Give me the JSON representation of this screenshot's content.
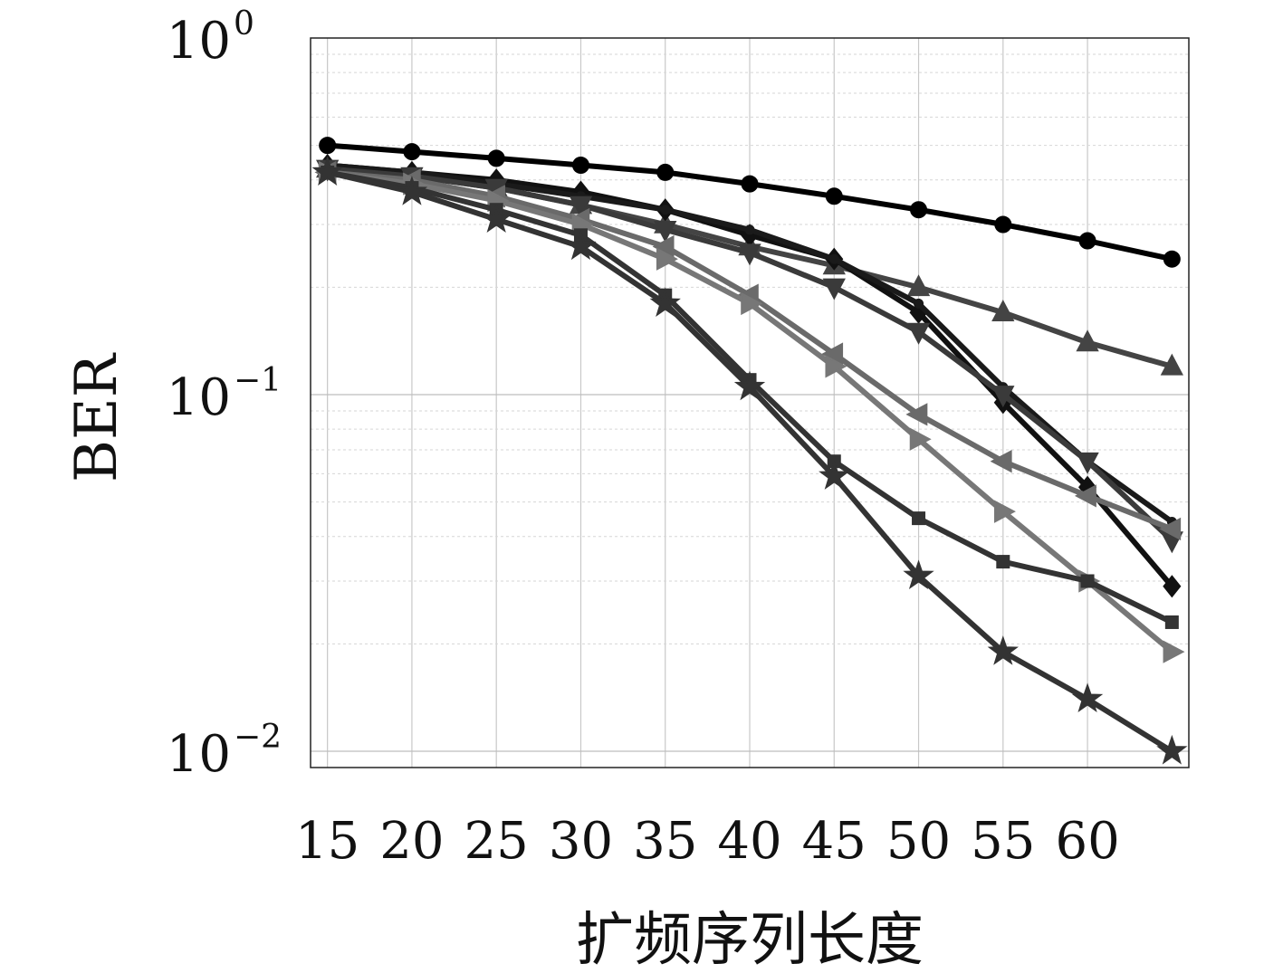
{
  "chart_data": {
    "type": "line",
    "title": "",
    "xlabel": "扩频序列长度",
    "ylabel": "BER",
    "x": [
      15,
      20,
      25,
      30,
      35,
      40,
      45,
      50,
      55,
      60,
      65
    ],
    "xticks": [
      "15",
      "20",
      "25",
      "30",
      "35",
      "40",
      "45",
      "50",
      "55",
      "60"
    ],
    "xlim": [
      14,
      66
    ],
    "yscale": "log",
    "ylim": [
      0.009,
      1
    ],
    "yticks": [
      {
        "value": 1,
        "base": "10",
        "exp": "0"
      },
      {
        "value": 0.1,
        "base": "10",
        "exp": "−1"
      },
      {
        "value": 0.01,
        "base": "10",
        "exp": "−2"
      }
    ],
    "grid": true,
    "series": [
      {
        "marker": "circle",
        "color": "#000000",
        "values": [
          0.5,
          0.48,
          0.46,
          0.44,
          0.42,
          0.39,
          0.36,
          0.33,
          0.3,
          0.27,
          0.24
        ]
      },
      {
        "marker": "triangle-up",
        "color": "#444444",
        "values": [
          0.43,
          0.41,
          0.38,
          0.34,
          0.3,
          0.26,
          0.23,
          0.2,
          0.17,
          0.14,
          0.12
        ]
      },
      {
        "marker": "diamond",
        "color": "#111111",
        "values": [
          0.44,
          0.42,
          0.4,
          0.37,
          0.33,
          0.28,
          0.24,
          0.17,
          0.095,
          0.055,
          0.029
        ]
      },
      {
        "marker": "dot",
        "color": "#1a1a1a",
        "values": [
          0.44,
          0.42,
          0.39,
          0.36,
          0.33,
          0.29,
          0.24,
          0.18,
          0.105,
          0.065,
          0.044
        ]
      },
      {
        "marker": "triangle-down",
        "color": "#3a3a3a",
        "values": [
          0.43,
          0.41,
          0.38,
          0.34,
          0.29,
          0.25,
          0.2,
          0.15,
          0.1,
          0.065,
          0.039
        ]
      },
      {
        "marker": "triangle-left",
        "color": "#6a6a6a",
        "values": [
          0.42,
          0.4,
          0.36,
          0.31,
          0.26,
          0.19,
          0.13,
          0.088,
          0.065,
          0.052,
          0.042
        ]
      },
      {
        "marker": "triangle-right",
        "color": "#777777",
        "values": [
          0.42,
          0.39,
          0.35,
          0.3,
          0.24,
          0.18,
          0.12,
          0.075,
          0.047,
          0.03,
          0.019
        ]
      },
      {
        "marker": "square",
        "color": "#333333",
        "values": [
          0.42,
          0.38,
          0.33,
          0.28,
          0.19,
          0.11,
          0.065,
          0.045,
          0.034,
          0.03,
          0.023
        ]
      },
      {
        "marker": "star",
        "color": "#333333",
        "values": [
          0.42,
          0.37,
          0.31,
          0.26,
          0.18,
          0.105,
          0.059,
          0.031,
          0.019,
          0.014,
          0.01
        ]
      }
    ]
  }
}
